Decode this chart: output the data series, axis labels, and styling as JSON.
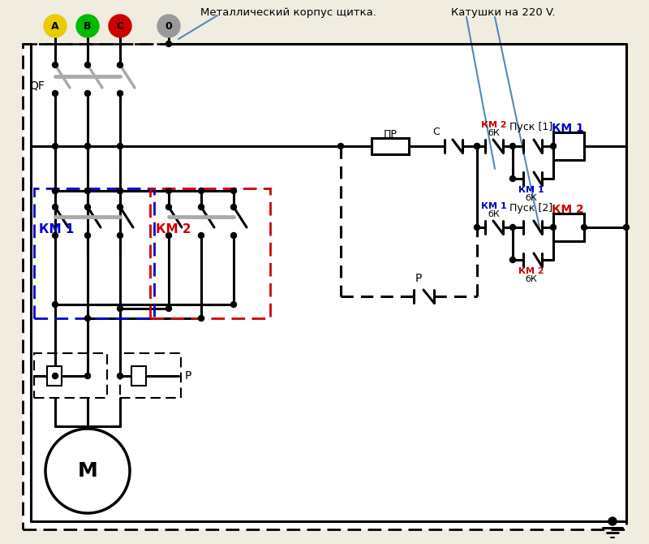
{
  "bg_color": "#f0ece0",
  "black": "#000000",
  "blue": "#0000cc",
  "red": "#cc0000",
  "gray": "#aaaaaa",
  "ann_blue": "#5588bb",
  "color_A": "#e8cc00",
  "color_B": "#00bb00",
  "color_C": "#cc0000",
  "color_0": "#999999",
  "label_metallic": "Металлический корпус щитка.",
  "label_coils": "Катушки на 220 V.",
  "label_QF": "QF",
  "label_PR": "ПР",
  "label_C": "C",
  "label_bk": "бК",
  "label_KM1": "КМ 1",
  "label_KM2": "КМ 2",
  "label_pusk1": "Пуск [1]",
  "label_pusk2": "Пуск [2]",
  "label_P": "P",
  "label_M": "M"
}
